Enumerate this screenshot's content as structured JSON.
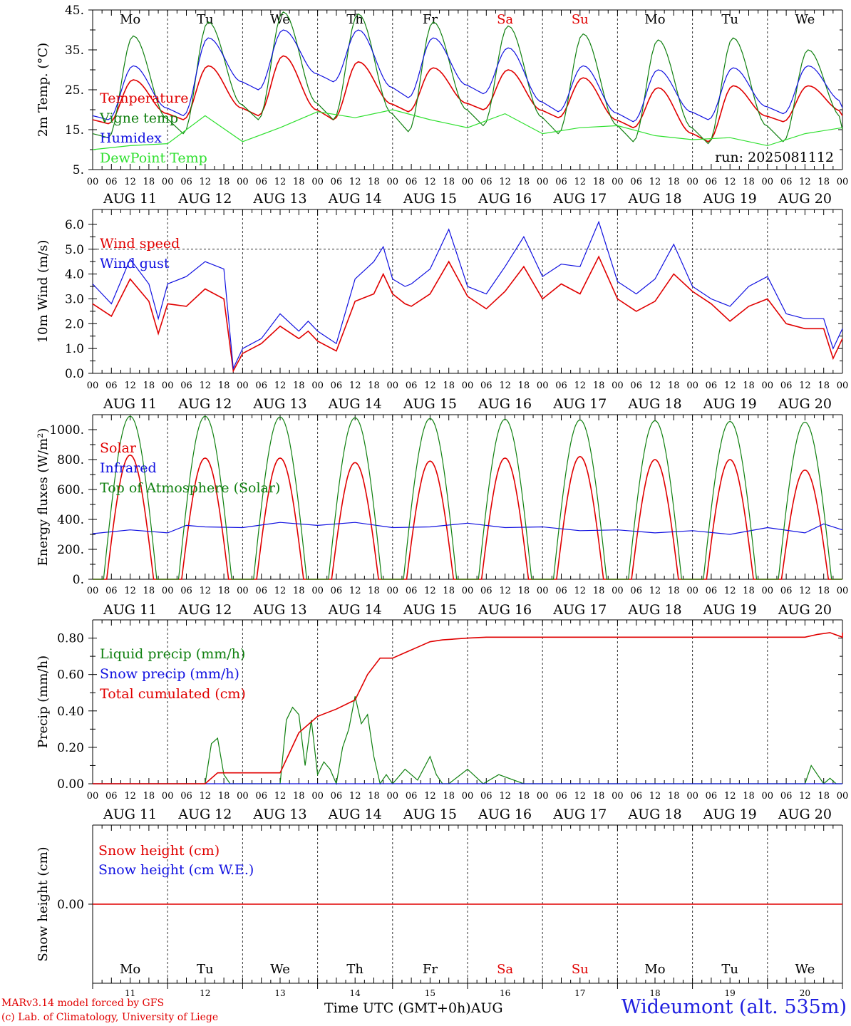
{
  "run_label": "run: 2025081112",
  "colors": {
    "red": "#e00000",
    "green": "#108010",
    "blue": "#1010e0",
    "lightgreen": "#30e030",
    "weekend": "#e00000",
    "gray": "#555555"
  },
  "days": [
    {
      "wd": "Mo",
      "date": "AUG 11",
      "num": "11",
      "weekend": false
    },
    {
      "wd": "Tu",
      "date": "AUG 12",
      "num": "12",
      "weekend": false
    },
    {
      "wd": "We",
      "date": "AUG 13",
      "num": "13",
      "weekend": false
    },
    {
      "wd": "Th",
      "date": "AUG 14",
      "num": "14",
      "weekend": false
    },
    {
      "wd": "Fr",
      "date": "AUG 15",
      "num": "15",
      "weekend": false
    },
    {
      "wd": "Sa",
      "date": "AUG 16",
      "num": "16",
      "weekend": true
    },
    {
      "wd": "Su",
      "date": "AUG 17",
      "num": "17",
      "weekend": true
    },
    {
      "wd": "Mo",
      "date": "AUG 18",
      "num": "18",
      "weekend": false
    },
    {
      "wd": "Tu",
      "date": "AUG 19",
      "num": "19",
      "weekend": false
    },
    {
      "wd": "We",
      "date": "AUG 20",
      "num": "20",
      "weekend": false
    }
  ],
  "hour_labels": [
    "00",
    "06",
    "12",
    "18"
  ],
  "final_hour_label": "00",
  "footer": {
    "credit1": "MARv3.14 model forced by GFS",
    "credit2": "(c) Lab. of Climatology, University of Liege",
    "axis_title": "Time UTC (GMT+0h)AUG",
    "station": "Wideumont (alt. 535m)"
  },
  "chart_data": [
    {
      "type": "line",
      "id": "temp",
      "ylabel": "2m Temp. (°C)",
      "ylim": [
        5,
        45
      ],
      "yticks": [
        5,
        15,
        25,
        35,
        45
      ],
      "ytick_labels": [
        "5.",
        "15.",
        "25.",
        "35.",
        "45."
      ],
      "show_weekdays_top": true,
      "legend_placement": "left",
      "series": [
        {
          "name": "Temperature",
          "color": "red",
          "kind": "diurnal",
          "min": [
            16.5,
            17.5,
            18.5,
            17.5,
            19.5,
            20,
            18,
            15.5,
            12,
            17
          ],
          "max": [
            27.5,
            31,
            33.5,
            32,
            30.5,
            30,
            28,
            25.5,
            26,
            26
          ],
          "end": 18.5,
          "peak": 13
        },
        {
          "name": "Vigne temp",
          "color": "green",
          "kind": "diurnal",
          "min": [
            13,
            14,
            17.5,
            17.5,
            14.5,
            16,
            14,
            12,
            11.5,
            12
          ],
          "max": [
            38.5,
            42,
            44.5,
            44,
            42,
            41,
            39,
            37.5,
            38,
            35
          ],
          "end": 15,
          "peak": 13
        },
        {
          "name": "Humidex",
          "color": "blue",
          "kind": "diurnal",
          "min": [
            17.5,
            18.5,
            25,
            27,
            23,
            24,
            19.5,
            17,
            17.5,
            19
          ],
          "max": [
            31,
            38,
            40,
            40,
            38,
            35.5,
            31,
            30,
            30.5,
            31
          ],
          "end": 20.5,
          "peak": 13
        },
        {
          "name": "DewPoint Temp",
          "color": "lightgreen",
          "kind": "points",
          "x": [
            0,
            12,
            24,
            36,
            48,
            60,
            72,
            84,
            96,
            108,
            120,
            132,
            144,
            156,
            168,
            180,
            192,
            204,
            216,
            228,
            240
          ],
          "y": [
            10,
            11,
            11.5,
            18.5,
            12,
            15.5,
            19.5,
            18,
            20,
            17.5,
            15.5,
            19,
            14,
            15.5,
            16,
            13.5,
            12.5,
            13,
            11,
            14,
            15.5
          ],
          "end": 11
        }
      ]
    },
    {
      "type": "line",
      "id": "wind",
      "ylabel": "10m Wind (m/s)",
      "ylim": [
        0,
        6.6
      ],
      "yticks": [
        0,
        1,
        2,
        3,
        4,
        5,
        6
      ],
      "ytick_labels": [
        "0.0",
        "1.0",
        "2.0",
        "3.0",
        "4.0",
        "5.0",
        "6.0"
      ],
      "ref_line": 5.0,
      "legend_placement": "left",
      "series": [
        {
          "name": "Wind speed",
          "color": "red",
          "kind": "points",
          "x": [
            0,
            6,
            12,
            18,
            21,
            24,
            30,
            36,
            42,
            45,
            48,
            54,
            60,
            66,
            69,
            72,
            78,
            84,
            90,
            93,
            96,
            100,
            102,
            108,
            114,
            120,
            126,
            132,
            138,
            144,
            150,
            156,
            162,
            168,
            174,
            180,
            186,
            192,
            198,
            204,
            210,
            216,
            222,
            228,
            234,
            237,
            240
          ],
          "y": [
            2.8,
            2.3,
            3.8,
            2.9,
            1.6,
            2.8,
            2.7,
            3.4,
            3.0,
            0.1,
            0.8,
            1.2,
            1.9,
            1.4,
            1.7,
            1.3,
            0.9,
            2.9,
            3.2,
            4.0,
            3.2,
            2.8,
            2.7,
            3.2,
            4.5,
            3.1,
            2.6,
            3.3,
            4.3,
            3.0,
            3.6,
            3.2,
            4.7,
            3.0,
            2.5,
            2.9,
            4.0,
            3.3,
            2.8,
            2.1,
            2.7,
            3.0,
            2.0,
            1.8,
            1.8,
            0.6,
            1.4
          ],
          "end": 1.4
        },
        {
          "name": "Wind gust",
          "color": "blue",
          "kind": "points",
          "x": [
            0,
            6,
            12,
            18,
            21,
            24,
            30,
            36,
            42,
            45,
            48,
            54,
            60,
            66,
            69,
            72,
            78,
            84,
            90,
            93,
            96,
            100,
            102,
            108,
            114,
            120,
            126,
            132,
            138,
            144,
            150,
            156,
            162,
            168,
            174,
            180,
            186,
            192,
            198,
            204,
            210,
            216,
            222,
            228,
            234,
            237,
            240
          ],
          "y": [
            3.6,
            2.8,
            4.6,
            3.6,
            2.2,
            3.6,
            3.9,
            4.5,
            4.2,
            0.2,
            1.0,
            1.4,
            2.4,
            1.7,
            2.1,
            1.7,
            1.2,
            3.8,
            4.5,
            5.1,
            3.8,
            3.5,
            3.6,
            4.2,
            5.8,
            3.5,
            3.2,
            4.3,
            5.5,
            3.9,
            4.4,
            4.3,
            6.1,
            3.7,
            3.2,
            3.8,
            5.2,
            3.5,
            3.0,
            2.7,
            3.5,
            3.9,
            2.4,
            2.2,
            2.2,
            1.0,
            1.8
          ],
          "end": 1.8
        }
      ]
    },
    {
      "type": "line",
      "id": "energy",
      "ylabel": "Energy fluxes (W/m²)",
      "ylim": [
        0,
        1100
      ],
      "yticks": [
        0,
        200,
        400,
        600,
        800,
        1000
      ],
      "ytick_labels": [
        "0.",
        "200.",
        "400.",
        "600.",
        "800.",
        "1000."
      ],
      "legend_placement": "left",
      "series": [
        {
          "name": "Solar",
          "color": "red",
          "kind": "bell",
          "start": 4.5,
          "end": 19.5,
          "peaks": [
            830,
            810,
            810,
            780,
            790,
            810,
            820,
            800,
            800,
            730
          ]
        },
        {
          "name": "Infrared",
          "color": "blue",
          "kind": "points",
          "x": [
            0,
            12,
            24,
            30,
            36,
            48,
            60,
            72,
            84,
            96,
            108,
            120,
            132,
            144,
            156,
            168,
            180,
            192,
            204,
            216,
            228,
            234,
            240
          ],
          "y": [
            305,
            330,
            310,
            360,
            350,
            345,
            380,
            360,
            380,
            345,
            350,
            375,
            345,
            350,
            325,
            330,
            310,
            325,
            300,
            345,
            310,
            370,
            330
          ],
          "end": 330
        },
        {
          "name": "Top of Atmosphere (Solar)",
          "color": "green",
          "kind": "bell",
          "start": 3.5,
          "end": 20.5,
          "peaks": [
            1090,
            1090,
            1085,
            1080,
            1075,
            1070,
            1065,
            1060,
            1055,
            1050
          ]
        }
      ]
    },
    {
      "type": "line",
      "id": "precip",
      "ylabel": "Precip (mm/h)",
      "ylim": [
        0,
        0.9
      ],
      "yticks": [
        0,
        0.2,
        0.4,
        0.6,
        0.8
      ],
      "ytick_labels": [
        "0.00",
        "0.20",
        "0.40",
        "0.60",
        "0.80"
      ],
      "legend_placement": "left",
      "series": [
        {
          "name": "Liquid precip (mm/h)",
          "color": "green",
          "kind": "points",
          "x": [
            0,
            36,
            38,
            40,
            42,
            44,
            60,
            62,
            64,
            66,
            68,
            70,
            72,
            74,
            76,
            78,
            80,
            82,
            84,
            86,
            88,
            90,
            92,
            94,
            96,
            100,
            104,
            108,
            110,
            112,
            114,
            120,
            125,
            130,
            138,
            148,
            240,
            228,
            230,
            232,
            234,
            236,
            238
          ],
          "y": [
            0,
            0,
            0.22,
            0.25,
            0.05,
            0,
            0,
            0.35,
            0.42,
            0.38,
            0.1,
            0.35,
            0.05,
            0.12,
            0.08,
            0.0,
            0.2,
            0.3,
            0.48,
            0.33,
            0.38,
            0.15,
            0.0,
            0.05,
            0.0,
            0.08,
            0.02,
            0.15,
            0.05,
            0.0,
            0.0,
            0.08,
            0.0,
            0.05,
            0.0,
            0,
            0,
            0,
            0.1,
            0.05,
            0,
            0.03,
            0
          ],
          "end": 0
        },
        {
          "name": "Snow precip (mm/h)",
          "color": "blue",
          "kind": "points",
          "x": [
            0,
            240
          ],
          "y": [
            0,
            0
          ],
          "end": 0
        },
        {
          "name": "Total cumulated (cm)",
          "color": "red",
          "kind": "points",
          "x": [
            0,
            36,
            40,
            48,
            60,
            66,
            72,
            78,
            84,
            88,
            92,
            96,
            100,
            104,
            108,
            112,
            120,
            126,
            132,
            240,
            228,
            232,
            236,
            240
          ],
          "y": [
            0,
            0,
            0.06,
            0.06,
            0.06,
            0.28,
            0.37,
            0.41,
            0.46,
            0.6,
            0.69,
            0.69,
            0.72,
            0.75,
            0.78,
            0.79,
            0.8,
            0.805,
            0.805,
            0.805,
            0.805,
            0.82,
            0.83,
            0.83
          ],
          "end": 0.83
        }
      ]
    },
    {
      "type": "line",
      "id": "snow",
      "ylabel": "Snow height (cm)",
      "ylim": [
        -1,
        1
      ],
      "yticks": [
        0
      ],
      "ytick_labels": [
        "0.00"
      ],
      "show_weekdays_bottom": true,
      "legend_placement": "left",
      "series": [
        {
          "name": "Snow height (cm)",
          "color": "red",
          "kind": "points",
          "x": [
            0,
            240
          ],
          "y": [
            0,
            0
          ],
          "end": 0
        },
        {
          "name": "Snow height (cm W.E.)",
          "color": "blue",
          "kind": "none",
          "end": 0
        }
      ]
    }
  ]
}
